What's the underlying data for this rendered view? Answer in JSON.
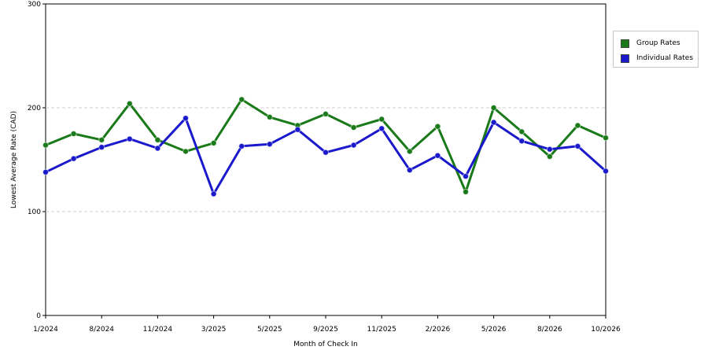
{
  "chart_data": {
    "type": "line",
    "xlabel": "Month of Check In",
    "ylabel": "Lowest Average Rate (CAD)",
    "ylim": [
      0,
      300
    ],
    "yticks": [
      "0",
      "100",
      "200",
      "300"
    ],
    "grid": "horizontal dashed",
    "legend_position": "right",
    "x_tick_labels": [
      "1/2024",
      "8/2024",
      "11/2024",
      "3/2025",
      "5/2025",
      "9/2025",
      "11/2025",
      "2/2026",
      "5/2026",
      "8/2026",
      "10/2026"
    ],
    "num_points": 21,
    "series": [
      {
        "name": "Group Rates",
        "color": "#1a7a1a",
        "values": [
          164,
          175,
          169,
          204,
          169,
          158,
          166,
          208,
          191,
          183,
          194,
          181,
          189,
          158,
          182,
          119,
          200,
          177,
          153,
          183,
          171
        ]
      },
      {
        "name": "Individual Rates",
        "color": "#1a1acc",
        "values": [
          138,
          151,
          162,
          170,
          161,
          190,
          117,
          163,
          165,
          179,
          157,
          164,
          180,
          140,
          154,
          134,
          186,
          168,
          160,
          163,
          139
        ]
      }
    ]
  }
}
